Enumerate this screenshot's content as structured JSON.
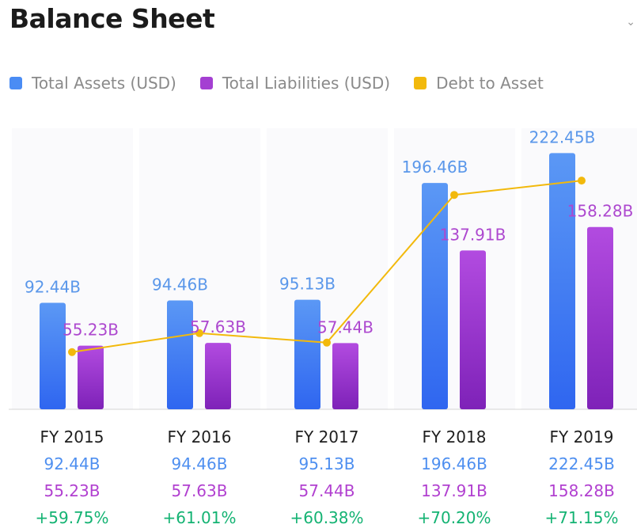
{
  "title": "Balance Sheet",
  "corner_icon": "chevron-icon",
  "legend": [
    {
      "label": "Total Assets (USD)",
      "color": "#4a8cf4"
    },
    {
      "label": "Total Liabilities (USD)",
      "color": "#a43fd2"
    },
    {
      "label": "Debt to Asset",
      "color": "#f2b90c"
    }
  ],
  "chart_data": {
    "type": "bar",
    "categories": [
      "FY 2015",
      "FY 2016",
      "FY 2017",
      "FY 2018",
      "FY 2019"
    ],
    "series": [
      {
        "name": "Total Assets (USD)",
        "type": "bar",
        "values": [
          92.44,
          94.46,
          95.13,
          196.46,
          222.45
        ],
        "labels": [
          "92.44B",
          "94.46B",
          "95.13B",
          "196.46B",
          "222.45B"
        ]
      },
      {
        "name": "Total Liabilities (USD)",
        "type": "bar",
        "values": [
          55.23,
          57.63,
          57.44,
          137.91,
          158.28
        ],
        "labels": [
          "55.23B",
          "57.63B",
          "57.44B",
          "137.91B",
          "158.28B"
        ]
      },
      {
        "name": "Debt to Asset",
        "type": "line",
        "values": [
          59.75,
          61.01,
          60.38,
          70.2,
          71.15
        ],
        "labels": [
          "+59.75%",
          "+61.01%",
          "+60.38%",
          "+70.20%",
          "+71.15%"
        ]
      }
    ],
    "ylim": [
      0,
      230
    ],
    "grid": false,
    "legend_position": "top-left"
  }
}
